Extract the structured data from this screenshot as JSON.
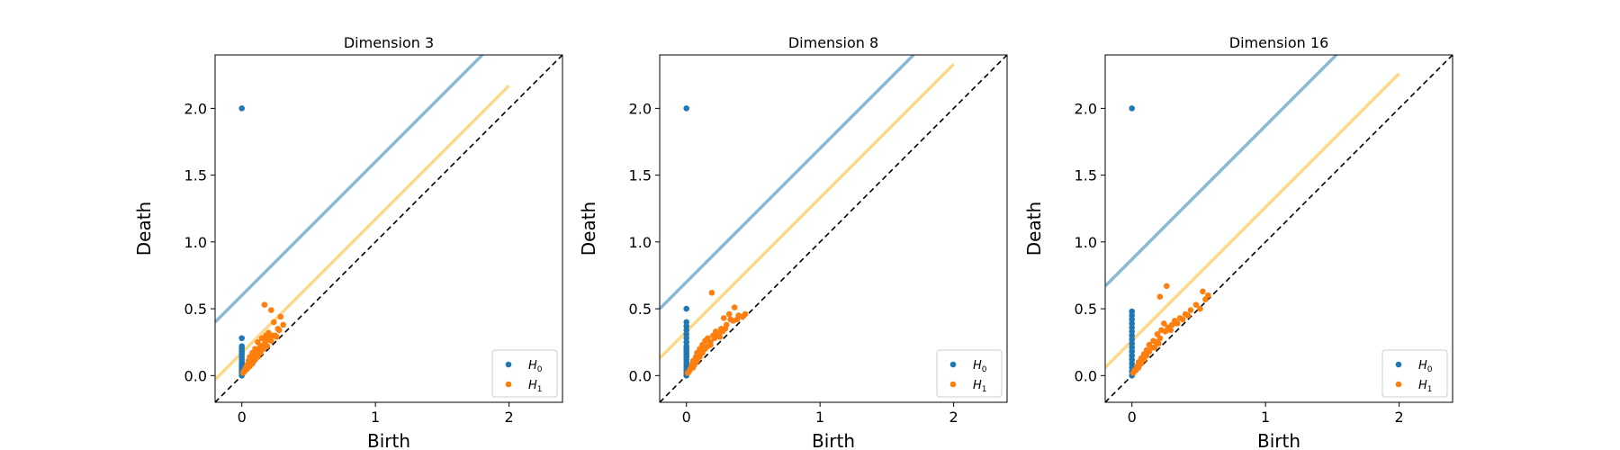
{
  "chart_data": [
    {
      "type": "scatter",
      "title": "Dimension 3",
      "xlabel": "Birth",
      "ylabel": "Death",
      "xlim": [
        -0.2,
        2.4
      ],
      "ylim": [
        -0.2,
        2.4
      ],
      "xticks": [
        0,
        1,
        2
      ],
      "yticks": [
        0.0,
        0.5,
        1.0,
        1.5,
        2.0
      ],
      "xtick_labels": [
        "0",
        "1",
        "2"
      ],
      "ytick_labels": [
        "0.0",
        "0.5",
        "1.0",
        "1.5",
        "2.0"
      ],
      "legend_position": "bottom-right",
      "grid": false,
      "diagonal": true,
      "colors": {
        "H0": "#1f77b4",
        "H1": "#ff7f0e",
        "band_H0": "#8ab9d6",
        "band_H1": "#ffd98a",
        "diagonal": "#000000"
      },
      "confidence_bands": [
        {
          "series": "H0",
          "offset": 0.6,
          "x_range": [
            -0.2,
            1.8
          ]
        },
        {
          "series": "H1",
          "offset": 0.17,
          "x_range": [
            -0.2,
            2.0
          ]
        }
      ],
      "series": [
        {
          "name": "H",
          "sub": "0",
          "points": [
            [
              0,
              2.0
            ],
            [
              0,
              0.28
            ],
            [
              0,
              0.22
            ],
            [
              0,
              0.2
            ],
            [
              0,
              0.18
            ],
            [
              0,
              0.16
            ],
            [
              0,
              0.14
            ],
            [
              0,
              0.12
            ],
            [
              0,
              0.1
            ],
            [
              0,
              0.09
            ],
            [
              0,
              0.08
            ],
            [
              0,
              0.07
            ],
            [
              0,
              0.06
            ],
            [
              0,
              0.05
            ],
            [
              0,
              0.04
            ],
            [
              0,
              0.03
            ],
            [
              0,
              0.02
            ],
            [
              0,
              0.01
            ],
            [
              0,
              0.0
            ]
          ]
        },
        {
          "name": "H",
          "sub": "1",
          "points": [
            [
              0.17,
              0.53
            ],
            [
              0.22,
              0.49
            ],
            [
              0.29,
              0.44
            ],
            [
              0.24,
              0.4
            ],
            [
              0.31,
              0.38
            ],
            [
              0.27,
              0.35
            ],
            [
              0.2,
              0.32
            ],
            [
              0.18,
              0.3
            ],
            [
              0.23,
              0.3
            ],
            [
              0.15,
              0.28
            ],
            [
              0.2,
              0.27
            ],
            [
              0.12,
              0.25
            ],
            [
              0.17,
              0.24
            ],
            [
              0.22,
              0.26
            ],
            [
              0.14,
              0.22
            ],
            [
              0.19,
              0.22
            ],
            [
              0.1,
              0.2
            ],
            [
              0.16,
              0.2
            ],
            [
              0.12,
              0.18
            ],
            [
              0.08,
              0.17
            ],
            [
              0.14,
              0.17
            ],
            [
              0.1,
              0.15
            ],
            [
              0.06,
              0.14
            ],
            [
              0.12,
              0.14
            ],
            [
              0.08,
              0.12
            ],
            [
              0.05,
              0.11
            ],
            [
              0.1,
              0.12
            ],
            [
              0.06,
              0.09
            ],
            [
              0.04,
              0.08
            ],
            [
              0.08,
              0.09
            ],
            [
              0.03,
              0.06
            ],
            [
              0.06,
              0.07
            ],
            [
              0.02,
              0.04
            ],
            [
              0.04,
              0.05
            ],
            [
              0.02,
              0.03
            ],
            [
              0.01,
              0.02
            ],
            [
              0.25,
              0.3
            ],
            [
              0.28,
              0.34
            ],
            [
              0.21,
              0.29
            ],
            [
              0.26,
              0.29
            ],
            [
              0.13,
              0.2
            ],
            [
              0.18,
              0.26
            ]
          ]
        }
      ]
    },
    {
      "type": "scatter",
      "title": "Dimension 8",
      "xlabel": "Birth",
      "ylabel": "Death",
      "xlim": [
        -0.2,
        2.4
      ],
      "ylim": [
        -0.2,
        2.4
      ],
      "xticks": [
        0,
        1,
        2
      ],
      "yticks": [
        0.0,
        0.5,
        1.0,
        1.5,
        2.0
      ],
      "xtick_labels": [
        "0",
        "1",
        "2"
      ],
      "ytick_labels": [
        "0.0",
        "0.5",
        "1.0",
        "1.5",
        "2.0"
      ],
      "legend_position": "bottom-right",
      "grid": false,
      "diagonal": true,
      "colors": {
        "H0": "#1f77b4",
        "H1": "#ff7f0e",
        "band_H0": "#8ab9d6",
        "band_H1": "#ffd98a",
        "diagonal": "#000000"
      },
      "confidence_bands": [
        {
          "series": "H0",
          "offset": 0.7,
          "x_range": [
            -0.2,
            1.7
          ]
        },
        {
          "series": "H1",
          "offset": 0.33,
          "x_range": [
            -0.2,
            2.0
          ]
        }
      ],
      "series": [
        {
          "name": "H",
          "sub": "0",
          "points": [
            [
              0,
              2.0
            ],
            [
              0,
              0.5
            ],
            [
              0,
              0.4
            ],
            [
              0,
              0.37
            ],
            [
              0,
              0.34
            ],
            [
              0,
              0.31
            ],
            [
              0,
              0.28
            ],
            [
              0,
              0.25
            ],
            [
              0,
              0.22
            ],
            [
              0,
              0.2
            ],
            [
              0,
              0.18
            ],
            [
              0,
              0.16
            ],
            [
              0,
              0.14
            ],
            [
              0,
              0.12
            ],
            [
              0,
              0.1
            ],
            [
              0,
              0.08
            ],
            [
              0,
              0.06
            ],
            [
              0,
              0.04
            ],
            [
              0,
              0.02
            ],
            [
              0,
              0.0
            ]
          ]
        },
        {
          "name": "H",
          "sub": "1",
          "points": [
            [
              0.19,
              0.62
            ],
            [
              0.36,
              0.51
            ],
            [
              0.32,
              0.46
            ],
            [
              0.39,
              0.45
            ],
            [
              0.28,
              0.43
            ],
            [
              0.42,
              0.44
            ],
            [
              0.35,
              0.41
            ],
            [
              0.3,
              0.38
            ],
            [
              0.26,
              0.35
            ],
            [
              0.22,
              0.33
            ],
            [
              0.27,
              0.33
            ],
            [
              0.2,
              0.3
            ],
            [
              0.24,
              0.31
            ],
            [
              0.16,
              0.28
            ],
            [
              0.21,
              0.28
            ],
            [
              0.14,
              0.26
            ],
            [
              0.18,
              0.25
            ],
            [
              0.12,
              0.23
            ],
            [
              0.16,
              0.22
            ],
            [
              0.1,
              0.2
            ],
            [
              0.14,
              0.2
            ],
            [
              0.08,
              0.17
            ],
            [
              0.12,
              0.17
            ],
            [
              0.07,
              0.14
            ],
            [
              0.1,
              0.14
            ],
            [
              0.05,
              0.11
            ],
            [
              0.08,
              0.11
            ],
            [
              0.04,
              0.08
            ],
            [
              0.06,
              0.08
            ],
            [
              0.03,
              0.05
            ],
            [
              0.05,
              0.06
            ],
            [
              0.02,
              0.03
            ],
            [
              0.01,
              0.02
            ],
            [
              0.33,
              0.42
            ],
            [
              0.38,
              0.42
            ],
            [
              0.44,
              0.46
            ],
            [
              0.23,
              0.3
            ],
            [
              0.29,
              0.35
            ],
            [
              0.18,
              0.23
            ],
            [
              0.25,
              0.29
            ]
          ]
        }
      ]
    },
    {
      "type": "scatter",
      "title": "Dimension 16",
      "xlabel": "Birth",
      "ylabel": "Death",
      "xlim": [
        -0.2,
        2.4
      ],
      "ylim": [
        -0.2,
        2.4
      ],
      "xticks": [
        0,
        1,
        2
      ],
      "yticks": [
        0.0,
        0.5,
        1.0,
        1.5,
        2.0
      ],
      "xtick_labels": [
        "0",
        "1",
        "2"
      ],
      "ytick_labels": [
        "0.0",
        "0.5",
        "1.0",
        "1.5",
        "2.0"
      ],
      "legend_position": "bottom-right",
      "grid": false,
      "diagonal": true,
      "colors": {
        "H0": "#1f77b4",
        "H1": "#ff7f0e",
        "band_H0": "#8ab9d6",
        "band_H1": "#ffd98a",
        "diagonal": "#000000"
      },
      "confidence_bands": [
        {
          "series": "H0",
          "offset": 0.87,
          "x_range": [
            -0.2,
            1.55
          ]
        },
        {
          "series": "H1",
          "offset": 0.26,
          "x_range": [
            -0.2,
            2.0
          ]
        }
      ],
      "series": [
        {
          "name": "H",
          "sub": "0",
          "points": [
            [
              0,
              2.0
            ],
            [
              0,
              0.48
            ],
            [
              0,
              0.45
            ],
            [
              0,
              0.42
            ],
            [
              0,
              0.39
            ],
            [
              0,
              0.36
            ],
            [
              0,
              0.33
            ],
            [
              0,
              0.3
            ],
            [
              0,
              0.27
            ],
            [
              0,
              0.24
            ],
            [
              0,
              0.21
            ],
            [
              0,
              0.18
            ],
            [
              0,
              0.15
            ],
            [
              0,
              0.12
            ],
            [
              0,
              0.09
            ],
            [
              0,
              0.06
            ],
            [
              0,
              0.03
            ],
            [
              0,
              0.0
            ]
          ]
        },
        {
          "name": "H",
          "sub": "1",
          "points": [
            [
              0.26,
              0.67
            ],
            [
              0.21,
              0.59
            ],
            [
              0.53,
              0.63
            ],
            [
              0.57,
              0.6
            ],
            [
              0.55,
              0.57
            ],
            [
              0.48,
              0.53
            ],
            [
              0.51,
              0.5
            ],
            [
              0.44,
              0.49
            ],
            [
              0.4,
              0.46
            ],
            [
              0.36,
              0.43
            ],
            [
              0.32,
              0.41
            ],
            [
              0.3,
              0.38
            ],
            [
              0.27,
              0.36
            ],
            [
              0.24,
              0.39
            ],
            [
              0.22,
              0.34
            ],
            [
              0.25,
              0.33
            ],
            [
              0.19,
              0.31
            ],
            [
              0.21,
              0.28
            ],
            [
              0.16,
              0.26
            ],
            [
              0.18,
              0.25
            ],
            [
              0.13,
              0.23
            ],
            [
              0.15,
              0.21
            ],
            [
              0.11,
              0.19
            ],
            [
              0.13,
              0.18
            ],
            [
              0.09,
              0.16
            ],
            [
              0.11,
              0.15
            ],
            [
              0.07,
              0.13
            ],
            [
              0.09,
              0.12
            ],
            [
              0.05,
              0.1
            ],
            [
              0.07,
              0.09
            ],
            [
              0.04,
              0.07
            ],
            [
              0.05,
              0.06
            ],
            [
              0.02,
              0.04
            ],
            [
              0.03,
              0.04
            ],
            [
              0.01,
              0.02
            ],
            [
              0.34,
              0.39
            ],
            [
              0.29,
              0.34
            ],
            [
              0.38,
              0.42
            ],
            [
              0.42,
              0.45
            ],
            [
              0.2,
              0.24
            ],
            [
              0.17,
              0.21
            ]
          ]
        }
      ]
    }
  ]
}
